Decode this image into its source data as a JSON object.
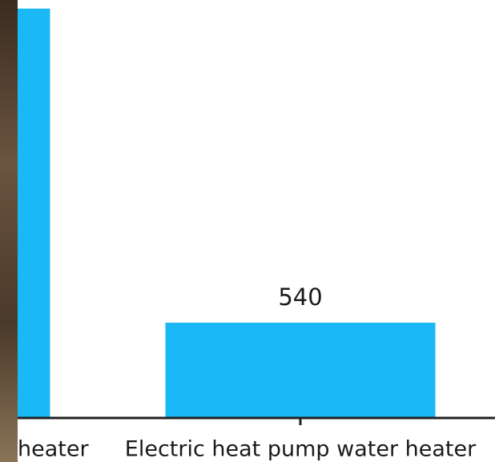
{
  "chart_data": {
    "type": "bar",
    "categories": [
      "heater",
      "Electric heat pump water heater"
    ],
    "values": [
      2320,
      540
    ],
    "value_labels": [
      null,
      "540"
    ],
    "color": "#1ab8f5"
  }
}
